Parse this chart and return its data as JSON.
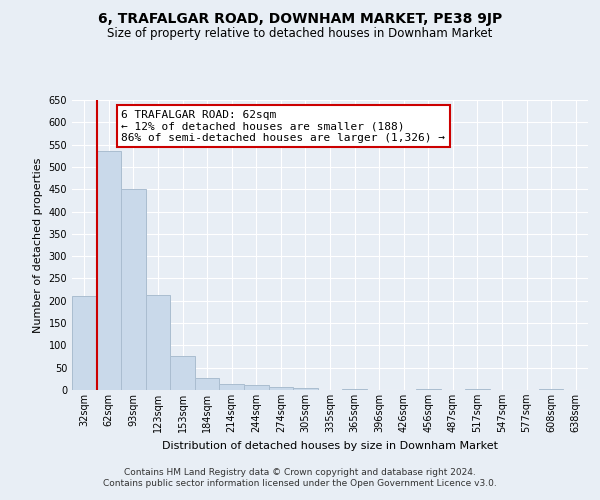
{
  "title": "6, TRAFALGAR ROAD, DOWNHAM MARKET, PE38 9JP",
  "subtitle": "Size of property relative to detached houses in Downham Market",
  "xlabel": "Distribution of detached houses by size in Downham Market",
  "ylabel": "Number of detached properties",
  "footer_line1": "Contains HM Land Registry data © Crown copyright and database right 2024.",
  "footer_line2": "Contains public sector information licensed under the Open Government Licence v3.0.",
  "categories": [
    "32sqm",
    "62sqm",
    "93sqm",
    "123sqm",
    "153sqm",
    "184sqm",
    "214sqm",
    "244sqm",
    "274sqm",
    "305sqm",
    "335sqm",
    "365sqm",
    "396sqm",
    "426sqm",
    "456sqm",
    "487sqm",
    "517sqm",
    "547sqm",
    "577sqm",
    "608sqm",
    "638sqm"
  ],
  "values": [
    210,
    535,
    450,
    212,
    76,
    27,
    14,
    11,
    7,
    5,
    0,
    3,
    0,
    0,
    2,
    0,
    2,
    0,
    0,
    2,
    0
  ],
  "bar_color": "#c9d9ea",
  "bar_edge_color": "#aabdd0",
  "vline_color": "#cc0000",
  "vline_index": 1,
  "ylim": [
    0,
    650
  ],
  "yticks": [
    0,
    50,
    100,
    150,
    200,
    250,
    300,
    350,
    400,
    450,
    500,
    550,
    600,
    650
  ],
  "annotation_line1": "6 TRAFALGAR ROAD: 62sqm",
  "annotation_line2": "← 12% of detached houses are smaller (188)",
  "annotation_line3": "86% of semi-detached houses are larger (1,326) →",
  "annotation_box_color": "#ffffff",
  "annotation_box_edge": "#cc0000",
  "bg_color": "#e8eef5",
  "grid_color": "#ffffff",
  "title_fontsize": 10,
  "subtitle_fontsize": 8.5,
  "axis_label_fontsize": 8,
  "tick_fontsize": 7,
  "annot_fontsize": 8,
  "footer_fontsize": 6.5
}
